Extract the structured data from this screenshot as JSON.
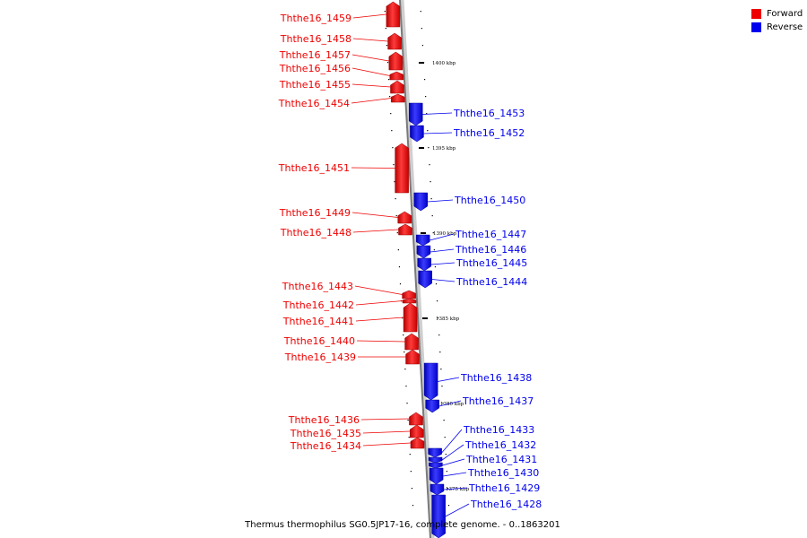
{
  "colors": {
    "forward": "#ee0000",
    "reverse": "#0000ee",
    "axis": "#888888"
  },
  "legend": [
    {
      "label": "Forward",
      "color": "#ee0000"
    },
    {
      "label": "Reverse",
      "color": "#0000ee"
    }
  ],
  "caption": "Thermus thermophilus SG0.5JP17-16, complete genome. - 0..1863201",
  "scale_ticks": [
    "1400 kbp",
    "1395 kbp",
    "1390 kbp",
    "1385 kbp",
    "1380 kbp",
    "1375 kbp"
  ],
  "forward_genes": [
    "Ththe16_1459",
    "Ththe16_1458",
    "Ththe16_1457",
    "Ththe16_1456",
    "Ththe16_1455",
    "Ththe16_1454",
    "Ththe16_1451",
    "Ththe16_1449",
    "Ththe16_1448",
    "Ththe16_1443",
    "Ththe16_1442",
    "Ththe16_1441",
    "Ththe16_1440",
    "Ththe16_1439",
    "Ththe16_1436",
    "Ththe16_1435",
    "Ththe16_1434"
  ],
  "reverse_genes": [
    "Ththe16_1453",
    "Ththe16_1452",
    "Ththe16_1450",
    "Ththe16_1447",
    "Ththe16_1446",
    "Ththe16_1445",
    "Ththe16_1444",
    "Ththe16_1438",
    "Ththe16_1437",
    "Ththe16_1433",
    "Ththe16_1432",
    "Ththe16_1431",
    "Ththe16_1430",
    "Ththe16_1429",
    "Ththe16_1428"
  ]
}
